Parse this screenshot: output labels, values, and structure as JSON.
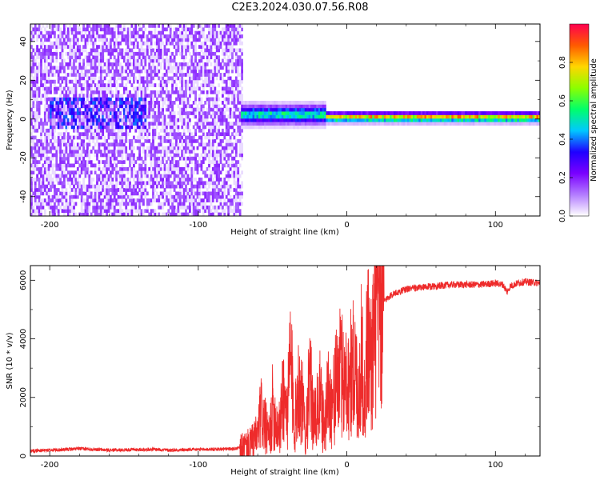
{
  "title": "C2E3.2024.030.07.56.R08",
  "chart_data": [
    {
      "type": "heatmap",
      "xlabel": "Height of straight line (km)",
      "ylabel": "Frequency (Hz)",
      "xlim": [
        -213,
        130
      ],
      "ylim": [
        -50,
        49
      ],
      "xticks": [
        -200,
        -100,
        0,
        100
      ],
      "yticks": [
        -40,
        -20,
        0,
        20,
        40
      ],
      "colorbar": {
        "label": "Normalized spectral amplitude",
        "ticks": [
          "0.0",
          "0.2",
          "0.4",
          "0.6",
          "0.8"
        ],
        "range": [
          0,
          1
        ],
        "colors": [
          "#ffffff",
          "#b37cff",
          "#7a00ff",
          "#1f00ff",
          "#00c8ff",
          "#00ff6a",
          "#8cff00",
          "#ffd600",
          "#ff5a00",
          "#ff004f"
        ]
      },
      "regions": [
        {
          "name": "broadband noise",
          "x_from": -213,
          "x_to": -70,
          "f_min": -50,
          "f_max": 49,
          "level": 0.12
        },
        {
          "name": "low-frequency band",
          "x_from": -200,
          "x_to": -135,
          "f_min": -6,
          "f_max": 10,
          "level": 0.25
        },
        {
          "name": "tone (onset)",
          "x_from": -72,
          "x_to": -15,
          "f_center": 1.5,
          "f_halfwidth": 4,
          "level": 0.55
        },
        {
          "name": "tone (steady)",
          "x_from": -15,
          "x_to": 130,
          "f_center": 0,
          "f_halfwidth": 2,
          "level": 0.85
        }
      ]
    },
    {
      "type": "line",
      "xlabel": "Height of straight line (km)",
      "ylabel": "SNR (10 * v/v)",
      "xlim": [
        -213,
        130
      ],
      "ylim": [
        0,
        6500
      ],
      "xticks": [
        -200,
        -100,
        0,
        100
      ],
      "yticks": [
        0,
        2000,
        4000,
        6000
      ],
      "color": "#ee2b2b",
      "series": [
        {
          "x": [
            -213,
            -200,
            -190,
            -180,
            -170,
            -160,
            -150,
            -140,
            -130,
            -120,
            -110,
            -100,
            -90,
            -80,
            -75,
            -70,
            -65,
            -60,
            -58,
            -55,
            -52,
            -50,
            -48,
            -45,
            -43,
            -40,
            -38,
            -35,
            -33,
            -30,
            -28,
            -25,
            -22,
            -20,
            -18,
            -15,
            -13,
            -10,
            -5,
            0,
            5,
            8,
            10,
            12,
            14,
            16,
            18,
            20,
            25,
            30,
            35,
            40,
            50,
            60,
            70,
            80,
            90,
            100,
            105,
            108,
            110,
            115,
            120,
            130
          ],
          "y": [
            180,
            200,
            220,
            250,
            230,
            200,
            210,
            220,
            230,
            200,
            210,
            220,
            230,
            240,
            250,
            300,
            400,
            700,
            1500,
            1000,
            600,
            1700,
            1200,
            900,
            2200,
            1400,
            3400,
            1000,
            2500,
            1800,
            800,
            2500,
            1200,
            1500,
            2000,
            800,
            2200,
            1700,
            2900,
            2500,
            3100,
            2000,
            3500,
            1900,
            4200,
            3000,
            4100,
            4800,
            5300,
            5500,
            5600,
            5700,
            5750,
            5800,
            5850,
            5850,
            5850,
            5900,
            5850,
            5600,
            5800,
            5900,
            5950,
            5900
          ]
        }
      ]
    }
  ]
}
